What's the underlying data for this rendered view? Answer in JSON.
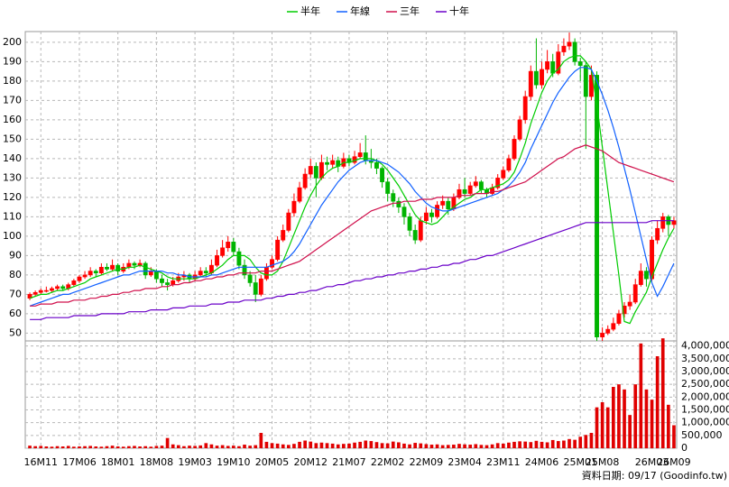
{
  "chart_data": {
    "type": "candlestick",
    "footnote": "資料日期: 09/17 (Goodinfo.tw)",
    "categories": [
      null,
      null,
      "16M11",
      null,
      null,
      null,
      null,
      null,
      null,
      "17M06",
      null,
      null,
      null,
      null,
      null,
      null,
      "18M01",
      null,
      null,
      null,
      null,
      null,
      null,
      "18M08",
      null,
      null,
      null,
      null,
      null,
      null,
      "19M03",
      null,
      null,
      null,
      null,
      null,
      null,
      "19M10",
      null,
      null,
      null,
      null,
      null,
      null,
      "20M05",
      null,
      null,
      null,
      null,
      null,
      null,
      "20M12",
      null,
      null,
      null,
      null,
      null,
      null,
      "21M07",
      null,
      null,
      null,
      null,
      null,
      null,
      "22M02",
      null,
      null,
      null,
      null,
      null,
      null,
      "22M09",
      null,
      null,
      null,
      null,
      null,
      null,
      "23M04",
      null,
      null,
      null,
      null,
      null,
      null,
      "23M11",
      null,
      null,
      null,
      null,
      null,
      null,
      "24M06",
      null,
      null,
      null,
      null,
      null,
      null,
      "25M01",
      null,
      null,
      null,
      "25M08",
      null,
      null,
      null,
      null,
      null,
      null,
      null,
      null,
      "26M03",
      null,
      null,
      null,
      "26M09"
    ],
    "candles": [
      [
        68,
        71,
        67,
        70
      ],
      [
        70,
        72,
        69,
        71
      ],
      [
        71,
        73,
        70,
        72
      ],
      [
        72,
        74,
        71,
        72
      ],
      [
        72,
        74,
        71,
        73
      ],
      [
        73,
        75,
        72,
        74
      ],
      [
        74,
        75,
        72,
        73
      ],
      [
        73,
        76,
        72,
        75
      ],
      [
        75,
        78,
        74,
        77
      ],
      [
        77,
        80,
        76,
        79
      ],
      [
        79,
        82,
        78,
        80
      ],
      [
        80,
        84,
        79,
        82
      ],
      [
        82,
        83,
        79,
        81
      ],
      [
        81,
        86,
        80,
        84
      ],
      [
        84,
        86,
        82,
        83
      ],
      [
        83,
        88,
        82,
        85
      ],
      [
        85,
        86,
        80,
        82
      ],
      [
        82,
        86,
        81,
        84
      ],
      [
        84,
        88,
        83,
        86
      ],
      [
        86,
        87,
        83,
        85
      ],
      [
        85,
        88,
        84,
        86
      ],
      [
        86,
        87,
        78,
        80
      ],
      [
        80,
        84,
        79,
        82
      ],
      [
        82,
        83,
        76,
        78
      ],
      [
        78,
        80,
        74,
        76
      ],
      [
        76,
        78,
        72,
        75
      ],
      [
        75,
        79,
        74,
        77
      ],
      [
        77,
        81,
        76,
        79
      ],
      [
        79,
        82,
        77,
        80
      ],
      [
        80,
        81,
        76,
        78
      ],
      [
        78,
        82,
        77,
        80
      ],
      [
        80,
        84,
        79,
        82
      ],
      [
        82,
        84,
        79,
        81
      ],
      [
        81,
        88,
        80,
        85
      ],
      [
        85,
        93,
        84,
        90
      ],
      [
        90,
        98,
        89,
        94
      ],
      [
        94,
        100,
        92,
        97
      ],
      [
        97,
        99,
        90,
        92
      ],
      [
        92,
        94,
        83,
        85
      ],
      [
        85,
        88,
        78,
        80
      ],
      [
        80,
        82,
        74,
        76
      ],
      [
        76,
        80,
        66,
        70
      ],
      [
        70,
        80,
        69,
        78
      ],
      [
        78,
        86,
        77,
        84
      ],
      [
        84,
        90,
        83,
        88
      ],
      [
        88,
        100,
        87,
        98
      ],
      [
        98,
        106,
        97,
        103
      ],
      [
        103,
        114,
        102,
        112
      ],
      [
        112,
        122,
        110,
        118
      ],
      [
        118,
        128,
        117,
        125
      ],
      [
        125,
        135,
        124,
        132
      ],
      [
        132,
        140,
        130,
        136
      ],
      [
        136,
        138,
        120,
        130
      ],
      [
        130,
        142,
        129,
        138
      ],
      [
        138,
        141,
        134,
        137
      ],
      [
        137,
        142,
        135,
        139
      ],
      [
        139,
        141,
        133,
        136
      ],
      [
        136,
        143,
        135,
        140
      ],
      [
        140,
        142,
        136,
        138
      ],
      [
        138,
        144,
        137,
        141
      ],
      [
        141,
        148,
        140,
        143
      ],
      [
        143,
        152,
        137,
        139
      ],
      [
        139,
        145,
        135,
        138
      ],
      [
        138,
        140,
        132,
        135
      ],
      [
        135,
        136,
        125,
        128
      ],
      [
        128,
        130,
        118,
        122
      ],
      [
        122,
        124,
        115,
        118
      ],
      [
        118,
        120,
        112,
        115
      ],
      [
        115,
        117,
        106,
        110
      ],
      [
        110,
        112,
        100,
        103
      ],
      [
        103,
        106,
        96,
        98
      ],
      [
        98,
        110,
        97,
        108
      ],
      [
        108,
        115,
        106,
        112
      ],
      [
        112,
        114,
        107,
        110
      ],
      [
        110,
        118,
        109,
        116
      ],
      [
        116,
        121,
        114,
        118
      ],
      [
        118,
        120,
        111,
        114
      ],
      [
        114,
        122,
        113,
        120
      ],
      [
        120,
        127,
        119,
        124
      ],
      [
        124,
        130,
        120,
        122
      ],
      [
        122,
        128,
        121,
        126
      ],
      [
        126,
        131,
        125,
        128
      ],
      [
        128,
        129,
        122,
        124
      ],
      [
        124,
        125,
        120,
        122
      ],
      [
        122,
        127,
        121,
        125
      ],
      [
        125,
        132,
        124,
        130
      ],
      [
        130,
        136,
        129,
        134
      ],
      [
        134,
        142,
        133,
        140
      ],
      [
        140,
        152,
        139,
        150
      ],
      [
        150,
        162,
        149,
        160
      ],
      [
        160,
        175,
        158,
        172
      ],
      [
        172,
        188,
        170,
        185
      ],
      [
        185,
        202,
        176,
        178
      ],
      [
        178,
        190,
        176,
        186
      ],
      [
        186,
        196,
        184,
        190
      ],
      [
        190,
        194,
        182,
        184
      ],
      [
        184,
        199,
        183,
        195
      ],
      [
        195,
        202,
        193,
        198
      ],
      [
        198,
        205,
        196,
        200
      ],
      [
        200,
        202,
        188,
        190
      ],
      [
        190,
        192,
        180,
        188
      ],
      [
        188,
        190,
        145,
        172
      ],
      [
        172,
        188,
        170,
        183
      ],
      [
        183,
        185,
        46,
        48
      ],
      [
        48,
        53,
        46,
        50
      ],
      [
        50,
        54,
        49,
        52
      ],
      [
        52,
        58,
        51,
        55
      ],
      [
        55,
        62,
        54,
        60
      ],
      [
        60,
        66,
        58,
        64
      ],
      [
        64,
        70,
        62,
        66
      ],
      [
        66,
        78,
        65,
        75
      ],
      [
        75,
        86,
        74,
        82
      ],
      [
        82,
        84,
        74,
        78
      ],
      [
        78,
        100,
        77,
        98
      ],
      [
        98,
        108,
        96,
        104
      ],
      [
        104,
        112,
        102,
        110
      ],
      [
        110,
        111,
        100,
        106
      ],
      [
        106,
        110,
        104,
        108
      ]
    ],
    "up_color": "#ff0000",
    "down_color": "#00b400",
    "ylim": [
      46,
      205.5
    ],
    "yticks": [
      50,
      60,
      70,
      80,
      90,
      100,
      110,
      120,
      130,
      140,
      150,
      160,
      170,
      180,
      190,
      200
    ],
    "grid": true,
    "series": [
      {
        "name": "半年",
        "color": "#00cc00",
        "values": [
          68,
          69,
          70,
          70,
          71,
          72,
          72,
          73,
          74,
          75,
          76,
          78,
          79,
          80,
          81,
          82,
          83,
          83,
          84,
          84,
          85,
          84,
          83,
          82,
          81,
          79,
          78,
          78,
          78,
          78,
          78,
          79,
          80,
          81,
          83,
          85,
          88,
          90,
          90,
          90,
          88,
          84,
          81,
          80,
          80,
          82,
          87,
          94,
          101,
          108,
          115,
          121,
          126,
          130,
          133,
          135,
          136,
          138,
          138,
          139,
          140,
          140,
          140,
          139,
          137,
          134,
          130,
          126,
          121,
          116,
          111,
          108,
          107,
          106,
          107,
          110,
          113,
          115,
          117,
          119,
          120,
          122,
          124,
          124,
          125,
          126,
          127,
          129,
          133,
          140,
          148,
          158,
          166,
          174,
          180,
          184,
          186,
          190,
          192,
          193,
          193,
          190,
          186,
          168,
          146,
          124,
          102,
          80,
          56,
          55,
          61,
          66,
          71,
          79,
          86,
          93,
          99,
          104
        ]
      },
      {
        "name": "年線",
        "color": "#1060ff",
        "values": [
          64,
          65,
          66,
          67,
          68,
          69,
          70,
          70,
          71,
          72,
          73,
          74,
          75,
          76,
          77,
          78,
          79,
          80,
          80,
          81,
          82,
          82,
          82,
          82,
          82,
          81,
          81,
          80,
          80,
          79,
          79,
          79,
          79,
          80,
          80,
          81,
          82,
          83,
          84,
          84,
          84,
          84,
          84,
          84,
          85,
          86,
          87,
          89,
          92,
          96,
          101,
          106,
          111,
          116,
          120,
          124,
          128,
          131,
          134,
          136,
          138,
          139,
          139,
          139,
          138,
          137,
          135,
          133,
          130,
          127,
          123,
          120,
          117,
          115,
          114,
          113,
          113,
          114,
          115,
          116,
          117,
          118,
          119,
          120,
          121,
          122,
          124,
          126,
          129,
          133,
          138,
          145,
          151,
          157,
          163,
          169,
          174,
          178,
          182,
          185,
          187,
          187,
          186,
          180,
          173,
          165,
          156,
          146,
          135,
          124,
          112,
          100,
          88,
          76,
          69,
          74,
          80,
          86
        ]
      },
      {
        "name": "三年",
        "color": "#d0104c",
        "values": [
          64,
          64,
          65,
          65,
          65,
          66,
          66,
          66,
          67,
          67,
          67,
          68,
          68,
          69,
          69,
          70,
          70,
          71,
          71,
          72,
          72,
          73,
          73,
          73,
          74,
          74,
          75,
          75,
          76,
          76,
          77,
          77,
          78,
          78,
          79,
          79,
          80,
          80,
          81,
          81,
          81,
          81,
          82,
          82,
          82,
          83,
          84,
          85,
          86,
          87,
          89,
          91,
          93,
          95,
          97,
          99,
          101,
          103,
          105,
          107,
          109,
          111,
          113,
          114,
          115,
          116,
          117,
          117,
          118,
          118,
          118,
          119,
          119,
          119,
          120,
          120,
          120,
          120,
          121,
          121,
          121,
          122,
          122,
          122,
          123,
          123,
          124,
          125,
          126,
          127,
          128,
          130,
          132,
          134,
          136,
          138,
          140,
          141,
          143,
          145,
          146,
          147,
          146,
          145,
          144,
          142,
          140,
          138,
          137,
          136,
          135,
          134,
          133,
          132,
          131,
          130,
          129,
          128
        ]
      },
      {
        "name": "十年",
        "color": "#6a00c8",
        "values": [
          57,
          57,
          57,
          58,
          58,
          58,
          58,
          58,
          59,
          59,
          59,
          59,
          59,
          60,
          60,
          60,
          60,
          60,
          61,
          61,
          61,
          61,
          62,
          62,
          62,
          62,
          63,
          63,
          63,
          64,
          64,
          64,
          64,
          65,
          65,
          65,
          66,
          66,
          66,
          67,
          67,
          67,
          67,
          68,
          68,
          69,
          69,
          70,
          70,
          71,
          71,
          72,
          72,
          73,
          74,
          74,
          75,
          75,
          76,
          77,
          77,
          78,
          78,
          79,
          79,
          80,
          80,
          81,
          81,
          82,
          82,
          83,
          83,
          84,
          84,
          85,
          85,
          86,
          86,
          87,
          88,
          88,
          89,
          90,
          90,
          91,
          92,
          93,
          94,
          95,
          96,
          97,
          98,
          99,
          100,
          101,
          102,
          103,
          104,
          105,
          106,
          107,
          107,
          107,
          107,
          107,
          107,
          107,
          107,
          107,
          107,
          107,
          107,
          108,
          108,
          108,
          108,
          108
        ]
      }
    ],
    "volume": {
      "color": "#e00000",
      "ylim": [
        0,
        4200000
      ],
      "yticks": [
        0,
        {
          "value": 500000,
          "label": "500,000"
        },
        {
          "value": 1000000,
          "label": "1,000,000"
        },
        {
          "value": 1500000,
          "label": "1,500,000"
        },
        {
          "value": 2000000,
          "label": "2,000,000"
        },
        {
          "value": 2500000,
          "label": "2,500,000"
        },
        {
          "value": 3000000,
          "label": "3,000,000"
        },
        {
          "value": 3500000,
          "label": "3,500,000"
        },
        {
          "value": 4000000,
          "label": "4,000,000"
        }
      ],
      "values": [
        100000,
        80000,
        90000,
        70000,
        60000,
        80000,
        70000,
        90000,
        60000,
        70000,
        80000,
        90000,
        70000,
        60000,
        80000,
        100000,
        70000,
        60000,
        80000,
        90000,
        70000,
        80000,
        60000,
        90000,
        100000,
        400000,
        150000,
        120000,
        80000,
        100000,
        90000,
        110000,
        200000,
        150000,
        100000,
        120000,
        90000,
        100000,
        80000,
        140000,
        100000,
        120000,
        600000,
        250000,
        200000,
        180000,
        150000,
        130000,
        170000,
        250000,
        300000,
        260000,
        200000,
        220000,
        200000,
        180000,
        150000,
        170000,
        180000,
        220000,
        250000,
        300000,
        280000,
        240000,
        200000,
        190000,
        260000,
        230000,
        180000,
        150000,
        210000,
        190000,
        160000,
        140000,
        150000,
        120000,
        130000,
        140000,
        170000,
        150000,
        140000,
        160000,
        130000,
        120000,
        150000,
        200000,
        180000,
        220000,
        250000,
        270000,
        260000,
        240000,
        290000,
        250000,
        230000,
        320000,
        280000,
        300000,
        360000,
        330000,
        450000,
        520000,
        600000,
        1600000,
        1800000,
        1600000,
        2400000,
        2500000,
        2300000,
        1300000,
        2500000,
        4100000,
        2300000,
        1900000,
        3600000,
        4300000,
        1700000,
        900000
      ]
    }
  }
}
